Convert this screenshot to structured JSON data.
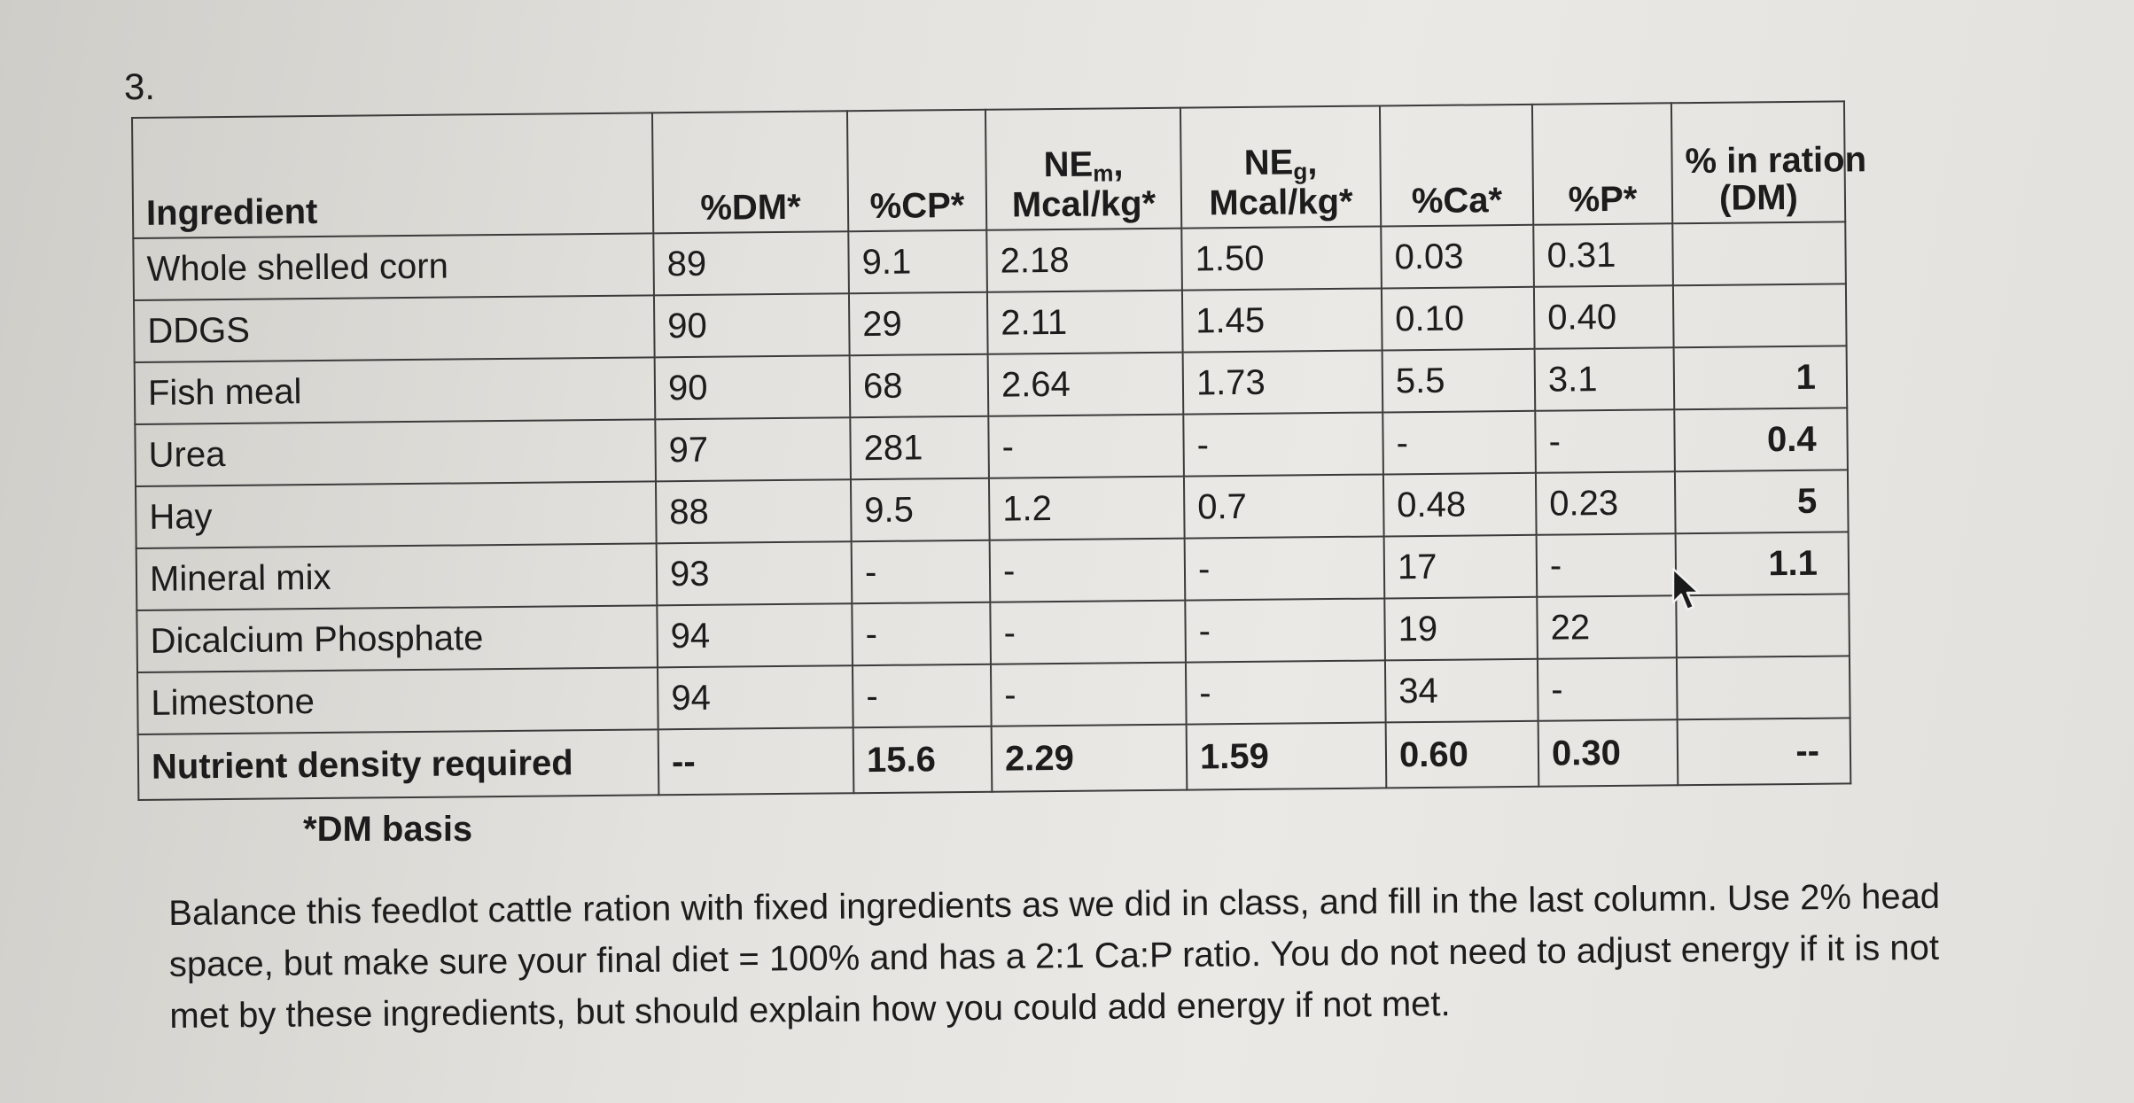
{
  "question_number": "3.",
  "table": {
    "headers": {
      "ingredient": "Ingredient",
      "dm": "%DM*",
      "cp": "%CP*",
      "nem_main": "NE",
      "nem_sub": "m",
      "nem_tail": ",",
      "nem_unit": "Mcal/kg*",
      "neg_main": "NE",
      "neg_sub": "g",
      "neg_tail": ",",
      "neg_unit": "Mcal/kg*",
      "ca": "%Ca*",
      "p": "%P*",
      "ration_line1": "% in ration",
      "ration_line2": "(DM)"
    },
    "rows": [
      {
        "ingredient": "Whole shelled corn",
        "dm": "89",
        "cp": "9.1",
        "nem": "2.18",
        "neg": "1.50",
        "ca": "0.03",
        "p": "0.31",
        "ration": ""
      },
      {
        "ingredient": "DDGS",
        "dm": "90",
        "cp": "29",
        "nem": "2.11",
        "neg": "1.45",
        "ca": "0.10",
        "p": "0.40",
        "ration": ""
      },
      {
        "ingredient": "Fish meal",
        "dm": "90",
        "cp": "68",
        "nem": "2.64",
        "neg": "1.73",
        "ca": "5.5",
        "p": "3.1",
        "ration": "1"
      },
      {
        "ingredient": "Urea",
        "dm": "97",
        "cp": "281",
        "nem": "-",
        "neg": "-",
        "ca": "-",
        "p": "-",
        "ration": "0.4"
      },
      {
        "ingredient": "Hay",
        "dm": "88",
        "cp": "9.5",
        "nem": "1.2",
        "neg": "0.7",
        "ca": "0.48",
        "p": "0.23",
        "ration": "5"
      },
      {
        "ingredient": "Mineral mix",
        "dm": "93",
        "cp": "-",
        "nem": "-",
        "neg": "-",
        "ca": "17",
        "p": "-",
        "ration": "1.1"
      },
      {
        "ingredient": "Dicalcium Phosphate",
        "dm": "94",
        "cp": "-",
        "nem": "-",
        "neg": "-",
        "ca": "19",
        "p": "22",
        "ration": ""
      },
      {
        "ingredient": "Limestone",
        "dm": "94",
        "cp": "-",
        "nem": "-",
        "neg": "-",
        "ca": "34",
        "p": "-",
        "ration": ""
      }
    ],
    "required": {
      "ingredient": "Nutrient density required",
      "dm": "--",
      "cp": "15.6",
      "nem": "2.29",
      "neg": "1.59",
      "ca": "0.60",
      "p": "0.30",
      "ration": "--"
    }
  },
  "footnote": "*DM basis",
  "instructions": "Balance this feedlot cattle ration with fixed ingredients as we did in class, and fill in the last column. Use 2% head space, but make sure your final diet = 100% and has a 2:1 Ca:P ratio. You do not need to adjust energy if it is not met by these ingredients, but should explain how you could add energy if not met.",
  "cursor_icon": "mouse-pointer-icon"
}
